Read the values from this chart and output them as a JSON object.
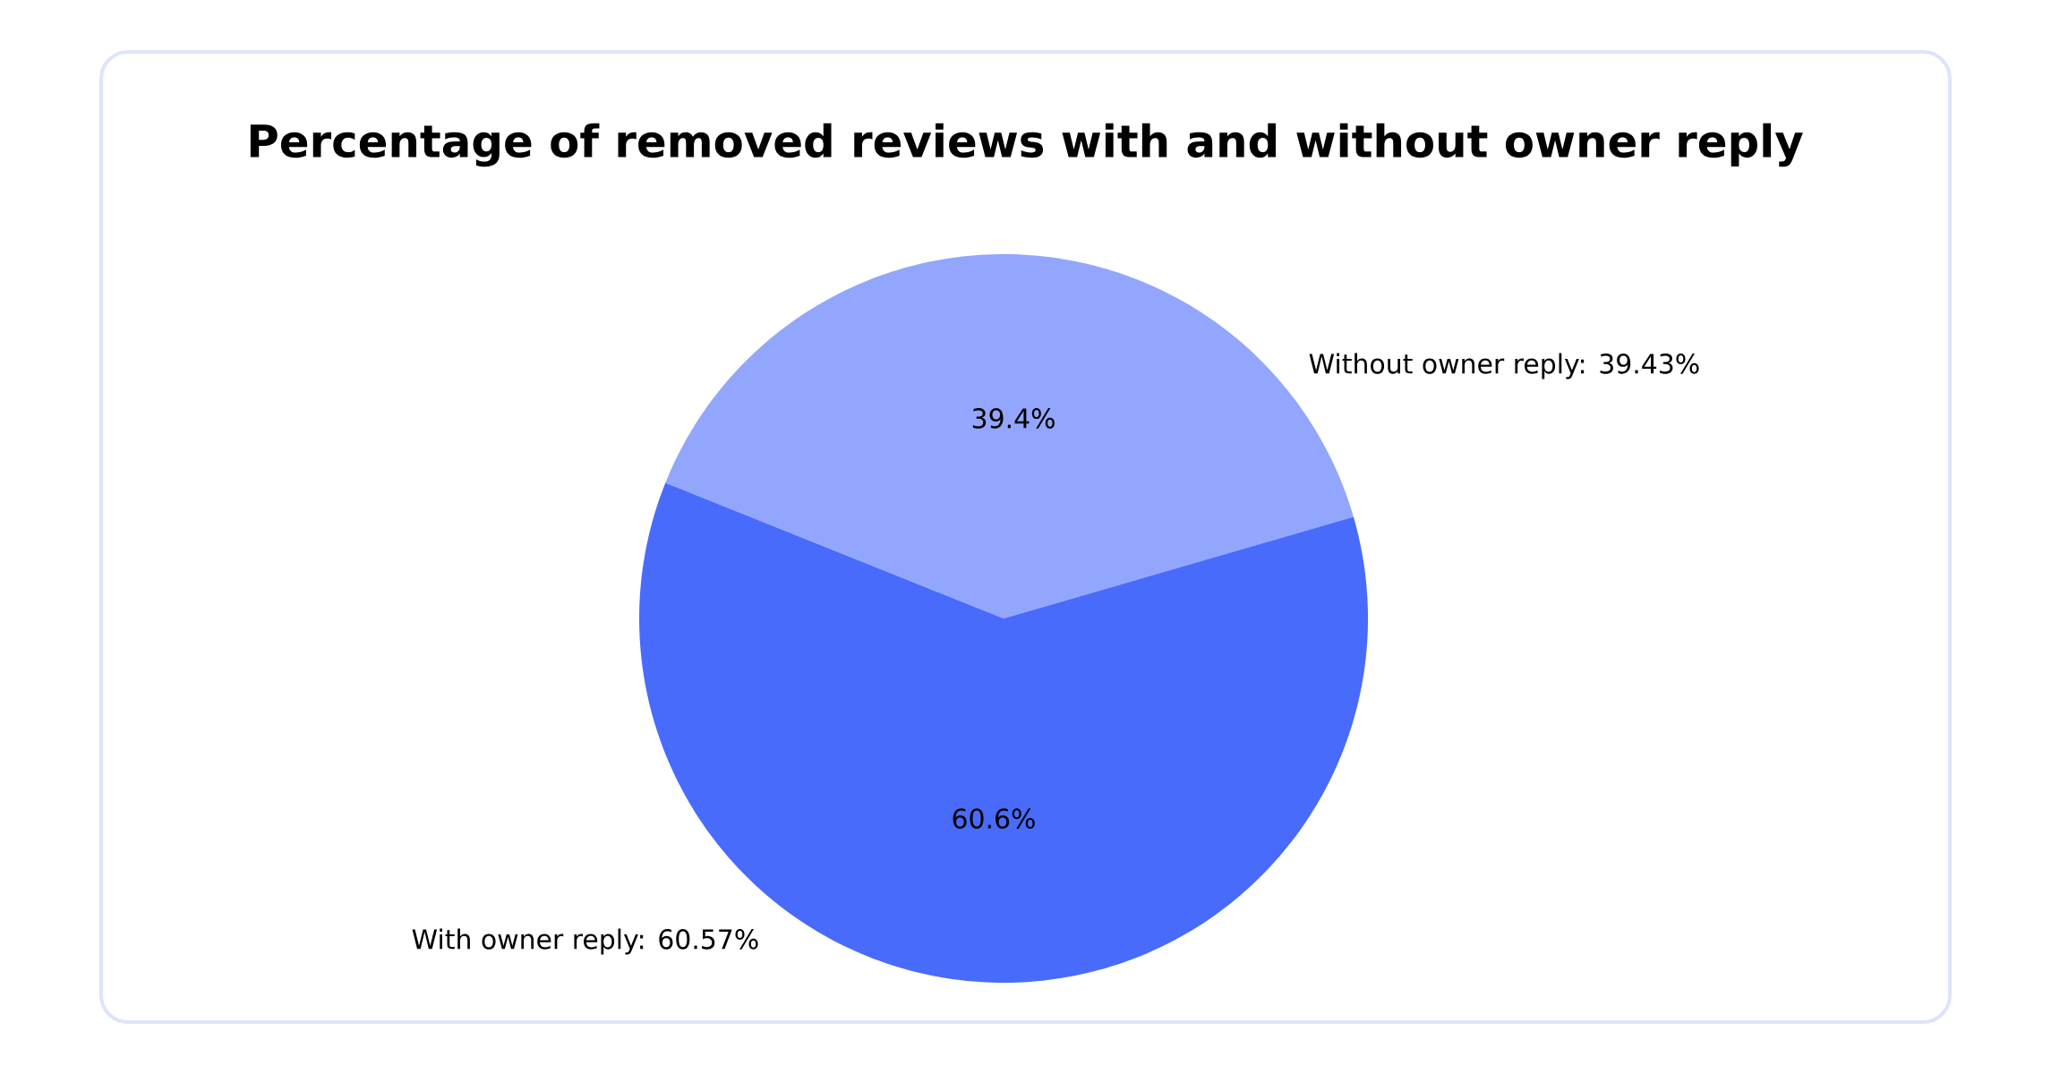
{
  "chart_data": {
    "type": "pie",
    "title": "Percentage of removed reviews with and without owner reply",
    "categories": [
      "Without owner reply: 39.43%",
      "With owner reply: 60.57%"
    ],
    "values": [
      39.43,
      60.57
    ],
    "colors": [
      "#93a6fd",
      "#486bfb"
    ],
    "value_labels": [
      "39.4%",
      "60.6%"
    ]
  }
}
